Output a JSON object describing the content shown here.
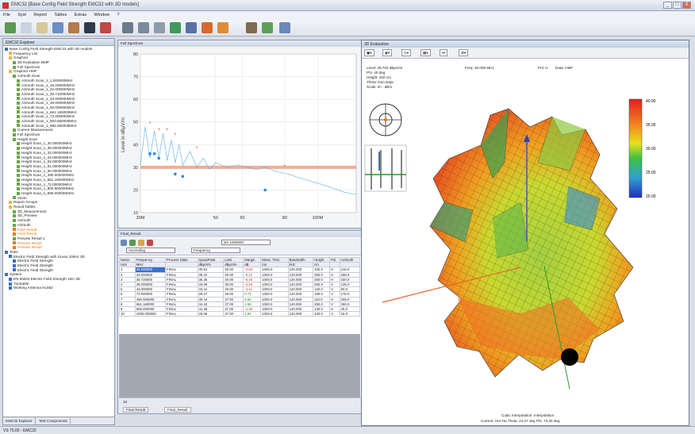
{
  "window": {
    "title": "EMC32 [Base Config Field Strength EMC32 with 3D models]",
    "min": "_",
    "max": "□",
    "close": "X"
  },
  "menu": [
    "File",
    "Syst",
    "Report",
    "Tables",
    "Extras",
    "Window",
    "?"
  ],
  "explorer": {
    "title": "EMC32 Explorer",
    "tabs": [
      "EMC32 Explorer",
      "Test Components"
    ],
    "tree": [
      {
        "label": "Base Config Field Strength EMC32 with 3D models",
        "indent": 0,
        "color": "#3a6fc9",
        "style": "normal"
      },
      {
        "label": "Frequency List",
        "indent": 1,
        "color": "#e8b84a",
        "style": "normal"
      },
      {
        "label": "Graphics",
        "indent": 1,
        "color": "#e8b84a",
        "style": "normal"
      },
      {
        "label": "3D Evaluation BMP",
        "indent": 2,
        "color": "#6aa64a",
        "style": "normal"
      },
      {
        "label": "Full Spectrum",
        "indent": 2,
        "color": "#6aa64a",
        "style": "normal"
      },
      {
        "label": "Graphics HMF",
        "indent": 1,
        "color": "#e8b84a",
        "style": "normal"
      },
      {
        "label": "Azimuth Scan",
        "indent": 2,
        "color": "#6aa64a",
        "style": "normal"
      },
      {
        "label": "Azimuth Scan_1_1.000000MHz",
        "indent": 3,
        "color": "#6aa64a",
        "style": "normal"
      },
      {
        "label": "Azimuth Scan_1_15.000000MHz",
        "indent": 3,
        "color": "#6aa64a",
        "style": "normal"
      },
      {
        "label": "Azimuth Scan_1_22.000000MHz",
        "indent": 3,
        "color": "#6aa64a",
        "style": "normal"
      },
      {
        "label": "Azimuth Scan_1_30.710000MHz",
        "indent": 3,
        "color": "#6aa64a",
        "style": "normal"
      },
      {
        "label": "Azimuth Scan_1_33.000000MHz",
        "indent": 3,
        "color": "#6aa64a",
        "style": "normal"
      },
      {
        "label": "Azimuth Scan_1_49.600000MHz",
        "indent": 3,
        "color": "#6aa64a",
        "style": "normal"
      },
      {
        "label": "Azimuth Scan_1_60.000000MHz",
        "indent": 3,
        "color": "#6aa64a",
        "style": "normal"
      },
      {
        "label": "Azimuth Scan_1_661.160000MHz",
        "indent": 3,
        "color": "#6aa64a",
        "style": "normal"
      },
      {
        "label": "Azimuth Scan_1_72.000000MHz",
        "indent": 3,
        "color": "#6aa64a",
        "style": "normal"
      },
      {
        "label": "Azimuth Scan_1_800.560000MHz",
        "indent": 3,
        "color": "#6aa64a",
        "style": "normal"
      },
      {
        "label": "Azimuth Scan_1_895.000000MHz",
        "indent": 3,
        "color": "#6aa64a",
        "style": "normal"
      },
      {
        "label": "Current Measurement",
        "indent": 2,
        "color": "#6aa64a",
        "style": "normal"
      },
      {
        "label": "Full Spectrum",
        "indent": 2,
        "color": "#6aa64a",
        "style": "normal"
      },
      {
        "label": "Height Scan",
        "indent": 2,
        "color": "#6aa64a",
        "style": "normal"
      },
      {
        "label": "Height Scan_1_30.000000MHz",
        "indent": 3,
        "color": "#6aa64a",
        "style": "normal"
      },
      {
        "label": "Height Scan_1_39.000000MHz",
        "indent": 3,
        "color": "#6aa64a",
        "style": "normal"
      },
      {
        "label": "Height Scan_1_33.000000MHz",
        "indent": 3,
        "color": "#6aa64a",
        "style": "normal"
      },
      {
        "label": "Height Scan_1_43.000000MHz",
        "indent": 3,
        "color": "#6aa64a",
        "style": "normal"
      },
      {
        "label": "Height Scan_1_53.000000MHz",
        "indent": 3,
        "color": "#6aa64a",
        "style": "normal"
      },
      {
        "label": "Height Scan_1_61.000000MHz",
        "indent": 3,
        "color": "#6aa64a",
        "style": "normal"
      },
      {
        "label": "Height Scan_1_60.000000MHz",
        "indent": 3,
        "color": "#6aa64a",
        "style": "normal"
      },
      {
        "label": "Height Scan_1_490.000000MHz",
        "indent": 3,
        "color": "#6aa64a",
        "style": "normal"
      },
      {
        "label": "Height Scan_1_661.160000MHz",
        "indent": 3,
        "color": "#6aa64a",
        "style": "normal"
      },
      {
        "label": "Height Scan_1_72.000000MHz",
        "indent": 3,
        "color": "#6aa64a",
        "style": "normal"
      },
      {
        "label": "Height Scan_1_800.560000MHz",
        "indent": 3,
        "color": "#6aa64a",
        "style": "normal"
      },
      {
        "label": "Height Scan_1_895.000000MHz",
        "indent": 3,
        "color": "#6aa64a",
        "style": "normal"
      },
      {
        "label": "Zoom",
        "indent": 2,
        "color": "#6aa64a",
        "style": "normal"
      },
      {
        "label": "Report Groups",
        "indent": 1,
        "color": "#e8b84a",
        "style": "normal"
      },
      {
        "label": "Result Tables",
        "indent": 1,
        "color": "#e8b84a",
        "style": "normal"
      },
      {
        "label": "3D_Measurement",
        "indent": 2,
        "color": "#6aa64a",
        "style": "normal"
      },
      {
        "label": "3D_Preview",
        "indent": 2,
        "color": "#6aa64a",
        "style": "normal"
      },
      {
        "label": "Azimuth",
        "indent": 2,
        "color": "#6aa64a",
        "style": "normal"
      },
      {
        "label": "Azimuth",
        "indent": 2,
        "color": "#6aa64a",
        "style": "normal"
      },
      {
        "label": "Final Result",
        "indent": 2,
        "color": "#e67a1a",
        "style": "orange"
      },
      {
        "label": "Final Result",
        "indent": 2,
        "color": "#e67a1a",
        "style": "orange"
      },
      {
        "label": "Preview Result 1",
        "indent": 2,
        "color": "#6aa64a",
        "style": "normal"
      },
      {
        "label": "Preview Result",
        "indent": 2,
        "color": "#e67a1a",
        "style": "orange"
      },
      {
        "label": "Preview Result",
        "indent": 2,
        "color": "#e67a1a",
        "style": "orange"
      },
      {
        "label": "Tests",
        "indent": 0,
        "color": "#3a6fc9",
        "style": "normal"
      },
      {
        "label": "Electric Field Strength with Scans 10kHz 3D",
        "indent": 1,
        "color": "#3a6fc9",
        "style": "normal"
      },
      {
        "label": "Electric Field Strength",
        "indent": 2,
        "color": "#3a6fc9",
        "style": "normal"
      },
      {
        "label": "Electric Field Strength",
        "indent": 2,
        "color": "#3a6fc9",
        "style": "normal"
      },
      {
        "label": "Electric Field Strength",
        "indent": 2,
        "color": "#3a6fc9",
        "style": "normal"
      },
      {
        "label": "System",
        "indent": 0,
        "color": "#3a6fc9",
        "style": "normal"
      },
      {
        "label": "EN 55022 Electric Field Strength 10m 3D",
        "indent": 1,
        "color": "#3a6fc9",
        "style": "normal"
      },
      {
        "label": "Turntable",
        "indent": 1,
        "color": "#3a6fc9",
        "style": "normal"
      },
      {
        "label": "Working Antenna HL562",
        "indent": 1,
        "color": "#3a6fc9",
        "style": "normal"
      }
    ]
  },
  "graph": {
    "window_title": "Full Spectrum",
    "ylabel": "Level in dBµV/m",
    "yticks": [
      "80",
      "70",
      "60",
      "50",
      "40",
      "30",
      "20",
      "10"
    ],
    "xticks": [
      "30M",
      "50",
      "60",
      "80",
      "100M"
    ]
  },
  "chart_data": {
    "type": "line",
    "xscale": "log",
    "ylabel": "Level in dBµV/m",
    "ylim": [
      10,
      80
    ],
    "xlim": [
      30,
      130
    ],
    "limit_line": 30,
    "trace": {
      "x": [
        30,
        31,
        32,
        33,
        34,
        35,
        36,
        37,
        38,
        39,
        40,
        42,
        44,
        46,
        48,
        50,
        54,
        58,
        62,
        66,
        70,
        76,
        82,
        90,
        100,
        110,
        120,
        130
      ],
      "y": [
        31,
        48,
        34,
        46,
        34,
        45,
        33,
        42,
        32,
        40,
        31,
        37,
        30,
        34,
        29,
        32,
        30,
        31,
        30,
        29,
        30,
        28,
        27,
        25,
        23,
        21,
        19,
        18
      ]
    },
    "red_markers": {
      "x": [
        32,
        34,
        36,
        38,
        44,
        80
      ],
      "y": [
        49,
        46,
        46,
        44,
        38,
        30
      ]
    },
    "blue_markers": {
      "x": [
        32,
        33,
        34,
        38,
        40,
        70
      ],
      "y": [
        36,
        36,
        34,
        27,
        26,
        20
      ]
    }
  },
  "table": {
    "window_title": "Final_Result",
    "rows_select": "Ascending",
    "count_select": "Frequency",
    "range_select": "3m 1000000",
    "columns": [
      "Name",
      "Frequency",
      "Process State",
      "QuasiPeak",
      "Limit",
      "Margin",
      "Meas. Time",
      "Bandwidth",
      "Height",
      "Pol",
      "Azimuth"
    ],
    "units": [
      "Unit",
      "MHz",
      "",
      "dBµV/m",
      "dBµV/m",
      "dB",
      "ms",
      "kHz",
      "cm",
      "",
      ""
    ],
    "rows": [
      [
        "1",
        "30.000000",
        "FINAL",
        "30.94",
        "30.00",
        "-0.94",
        "1000.0",
        "120.000",
        "100.0",
        "H",
        "210.0"
      ],
      [
        "2",
        "33.000000",
        "FINAL",
        "36.22",
        "30.00",
        "-6.22",
        "1000.0",
        "120.000",
        "280.0",
        "H",
        "188.0"
      ],
      [
        "3",
        "36.720000",
        "FINAL",
        "36.35",
        "30.00",
        "-6.35",
        "1000.0",
        "120.000",
        "250.0",
        "H",
        "160.0"
      ],
      [
        "4",
        "39.000000",
        "FINAL",
        "33.59",
        "30.00",
        "-3.59",
        "1000.0",
        "120.000",
        "260.0",
        "V",
        "135.0"
      ],
      [
        "5",
        "43.000000",
        "FINAL",
        "34.41",
        "30.00",
        "-4.41",
        "1000.0",
        "120.000",
        "120.0",
        "V",
        "90.0"
      ],
      [
        "6",
        "72.000000",
        "FINAL",
        "29.27",
        "30.00",
        "0.73",
        "1000.0",
        "120.000",
        "180.0",
        "V",
        "175.0"
      ],
      [
        "7",
        "490.000000",
        "FINAL",
        "30.44",
        "37.00",
        "6.56",
        "1000.0",
        "120.000",
        "110.0",
        "H",
        "205.0"
      ],
      [
        "8",
        "661.160000",
        "FINAL",
        "34.42",
        "37.00",
        "2.58",
        "1000.0",
        "120.000",
        "250.0",
        "V",
        "280.0"
      ],
      [
        "9",
        "895.000000",
        "FINAL",
        "41.38",
        "37.00",
        "-4.38",
        "1000.0",
        "120.000",
        "130.0",
        "H",
        "45.0"
      ],
      [
        "10",
        "1000.000000",
        "FINAL",
        "33.06",
        "37.00",
        "3.94",
        "1000.0",
        "120.000",
        "100.0",
        "V",
        "15.0"
      ]
    ],
    "bottom_tabs": [
      "Final Result",
      "Final_Result"
    ],
    "page": "10"
  },
  "eval3d": {
    "window_title": "3D Evaluation",
    "info_lines": [
      "Level: 46.703 dBµV/m",
      "Phi: 40 deg",
      "Height: 250 cm",
      "Theta: Non Data",
      "Scale: lin - dBm"
    ],
    "freq": "Freq: 30.000 MHz",
    "pol": "Pol: H",
    "data": "Data: HMF",
    "scale_values": [
      "40.00",
      "35.00",
      "30.00",
      "25.00",
      "20.00"
    ],
    "footer1": "Cubic Interpolation: Interpolation",
    "footer2": "Current: Hor-Ha   Theta: 24.27 deg   Phi: 73.20 deg"
  },
  "status": "VS 75.00 - EMC32"
}
